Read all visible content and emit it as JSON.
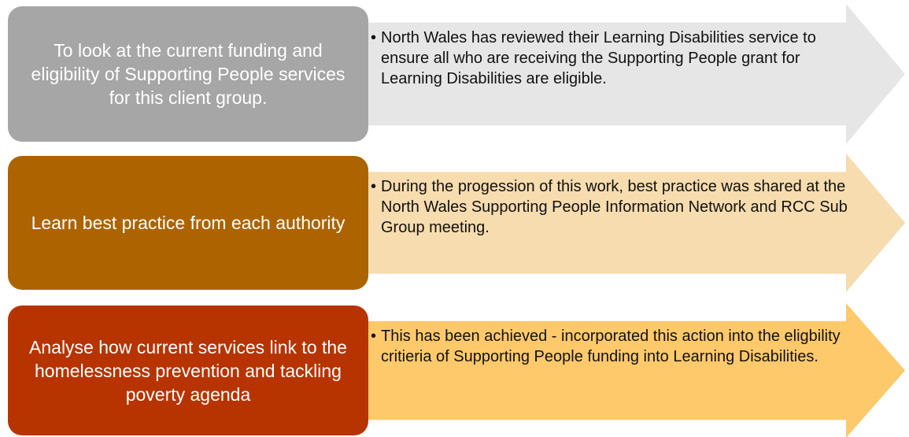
{
  "rows": [
    {
      "label": "To look at the current funding and eligibility of Supporting People services for this client group.",
      "detail": "North Wales has reviewed their Learning Disabilities service to ensure all who are receiving the Supporting People grant for Learning Disabilities are eligible.",
      "box_color": "#a6a6a6",
      "arrow_color": "#e6e6e6"
    },
    {
      "label": "Learn best practice from each authority",
      "detail": "During the progession of this work, best practice was shared at the North Wales Supporting People Information Network and RCC Sub Group meeting.",
      "box_color": "#ac6300",
      "arrow_color": "#f6dcae"
    },
    {
      "label": "Analyse how current services link to the homelessness prevention and tackling poverty agenda",
      "detail": "This has been achieved - incorporated this action into the eligbility critieria of Supporting People funding into Learning Disabilities.",
      "box_color": "#b73400",
      "arrow_color": "#fec96a"
    }
  ]
}
